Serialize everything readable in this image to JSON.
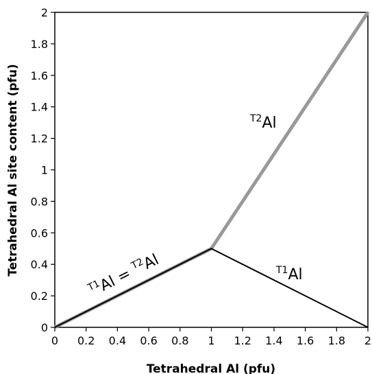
{
  "chart_data": {
    "type": "line",
    "x_label": "Tetrahedral Al (pfu)",
    "y_label": "Tetrahedral Al site content (pfu)",
    "x": [
      0,
      1,
      2
    ],
    "series": [
      {
        "color": "#999999",
        "width": 5,
        "values": [
          0,
          0.5,
          2
        ]
      },
      {
        "color": "#000000",
        "width": 2,
        "values": [
          0,
          0.5,
          0
        ]
      }
    ],
    "xlim": [
      0,
      2
    ],
    "ylim": [
      0,
      2
    ],
    "xticks": [
      0,
      0.2,
      0.4,
      0.6,
      0.8,
      1,
      1.2,
      1.4,
      1.6,
      1.8,
      2
    ],
    "yticks": [
      0,
      0.2,
      0.4,
      0.6,
      0.8,
      1,
      1.2,
      1.4,
      1.6,
      1.8,
      2
    ],
    "grid": false,
    "annotations": [
      {
        "parts": [
          {
            "text": "T2",
            "sup": true
          },
          {
            "text": "Al",
            "sup": false
          }
        ]
      },
      {
        "parts": [
          {
            "text": "T1",
            "sup": true
          },
          {
            "text": "Al",
            "sup": false
          }
        ]
      },
      {
        "parts": [
          {
            "text": "T1",
            "sup": true
          },
          {
            "text": "Al = ",
            "sup": false
          },
          {
            "text": "T2",
            "sup": true
          },
          {
            "text": "Al",
            "sup": false
          }
        ]
      }
    ]
  }
}
